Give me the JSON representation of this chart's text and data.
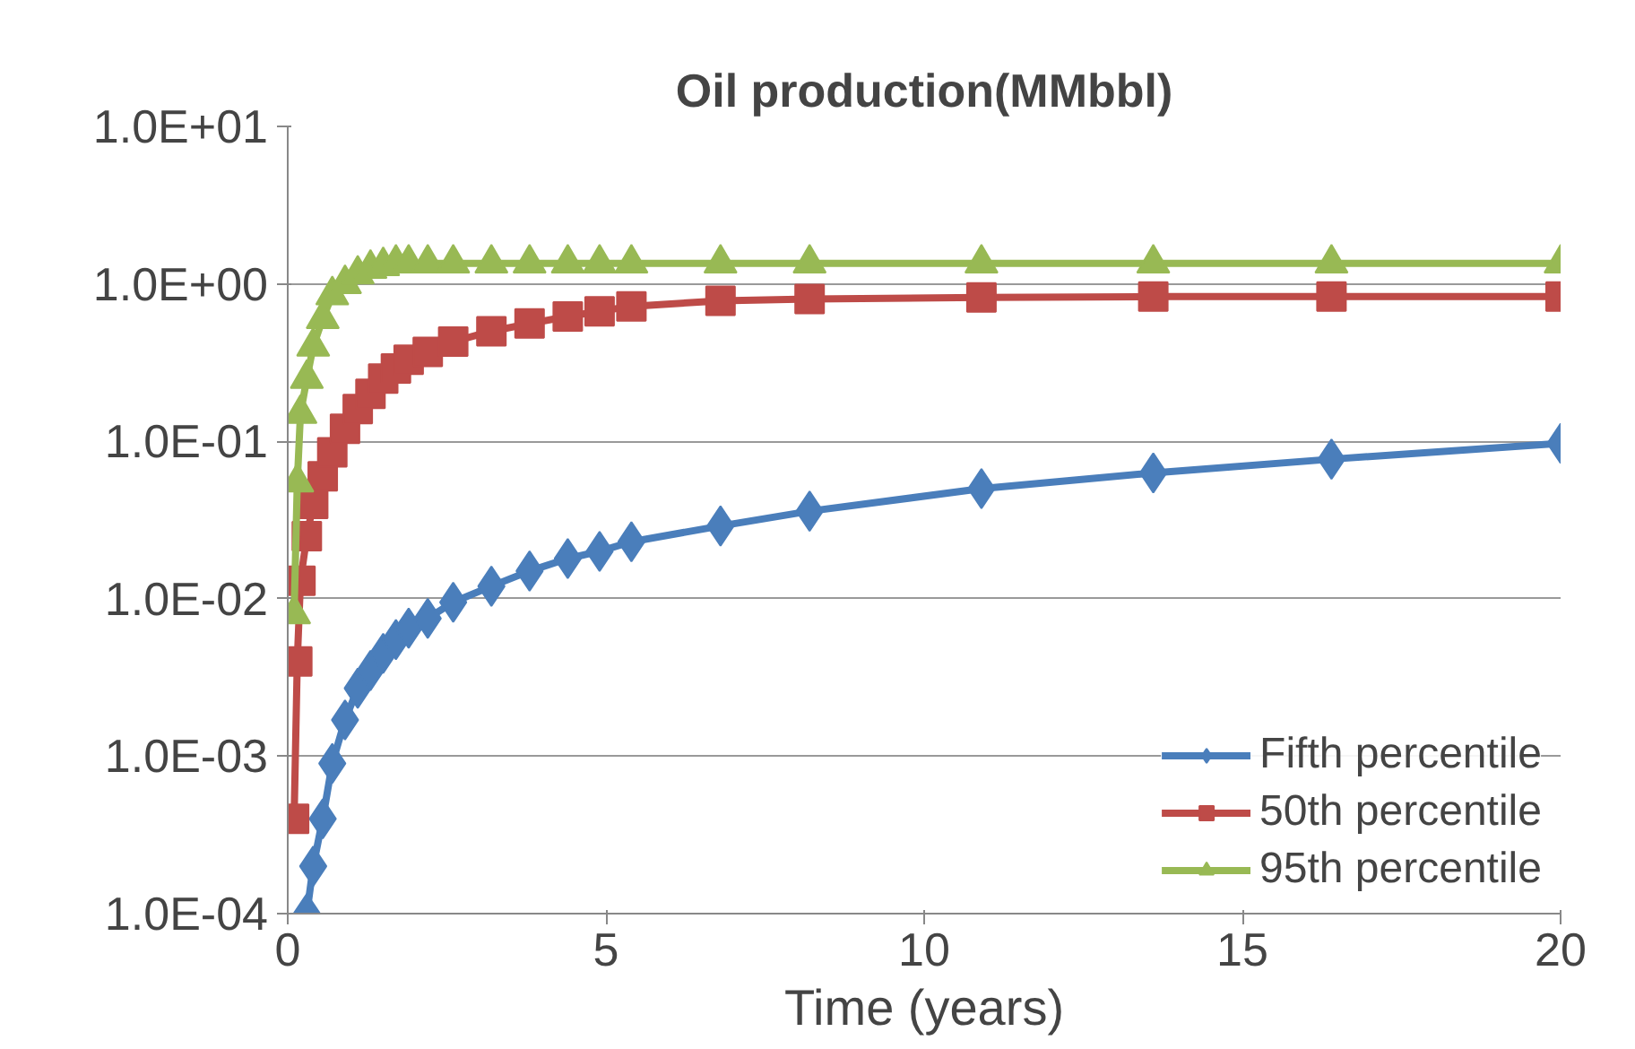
{
  "chart_data": {
    "type": "line",
    "title": "Oil production(MMbbl)",
    "xlabel": "Time (years)",
    "log": "y",
    "grid": "y",
    "legend": "bottom right",
    "line_style": "solid",
    "xlim": [
      0,
      20
    ],
    "xticks": [
      0,
      5,
      10,
      15,
      20
    ],
    "ylim": [
      0.0001,
      10
    ],
    "yticks": [
      {
        "value": 0.0001,
        "label": "1.0E-04"
      },
      {
        "value": 0.001,
        "label": "1.0E-03"
      },
      {
        "value": 0.01,
        "label": "1.0E-02"
      },
      {
        "value": 0.1,
        "label": "1.0E-01"
      },
      {
        "value": 1,
        "label": "1.0E+00"
      },
      {
        "value": 10,
        "label": "1.0E+01"
      }
    ],
    "series": [
      {
        "name": "Fifth percentile",
        "color": "#4a7ebb",
        "marker": "diamond",
        "x": [
          0.3,
          0.4,
          0.55,
          0.7,
          0.9,
          1.1,
          1.3,
          1.5,
          1.7,
          1.9,
          2.2,
          2.6,
          3.2,
          3.8,
          4.4,
          4.9,
          5.4,
          6.8,
          8.2,
          10.9,
          13.6,
          16.4,
          20
        ],
        "values": [
          0.0001,
          0.0002,
          0.0004,
          0.0009,
          0.0017,
          0.0027,
          0.0035,
          0.0045,
          0.0055,
          0.0065,
          0.0075,
          0.0095,
          0.012,
          0.015,
          0.018,
          0.02,
          0.023,
          0.029,
          0.036,
          0.05,
          0.063,
          0.077,
          0.097
        ]
      },
      {
        "name": "50th percentile",
        "color": "#be4b48",
        "marker": "square",
        "x": [
          0.1,
          0.15,
          0.2,
          0.3,
          0.4,
          0.55,
          0.7,
          0.9,
          1.1,
          1.3,
          1.5,
          1.7,
          1.9,
          2.2,
          2.6,
          3.2,
          3.8,
          4.4,
          4.9,
          5.4,
          6.8,
          8.2,
          10.9,
          13.6,
          16.4,
          20
        ],
        "values": [
          0.0004,
          0.004,
          0.013,
          0.025,
          0.04,
          0.06,
          0.085,
          0.12,
          0.16,
          0.2,
          0.25,
          0.29,
          0.33,
          0.37,
          0.43,
          0.5,
          0.56,
          0.62,
          0.67,
          0.72,
          0.78,
          0.8,
          0.82,
          0.83,
          0.83,
          0.83
        ]
      },
      {
        "name": "95th percentile",
        "color": "#98b954",
        "marker": "triangle",
        "x": [
          0.1,
          0.15,
          0.2,
          0.3,
          0.4,
          0.55,
          0.7,
          0.9,
          1.1,
          1.3,
          1.5,
          1.7,
          1.9,
          2.2,
          2.6,
          3.2,
          3.8,
          4.4,
          4.9,
          5.4,
          6.8,
          8.2,
          10.9,
          13.6,
          16.4,
          20
        ],
        "values": [
          0.008,
          0.055,
          0.15,
          0.25,
          0.4,
          0.6,
          0.85,
          1.0,
          1.15,
          1.25,
          1.3,
          1.35,
          1.35,
          1.35,
          1.35,
          1.35,
          1.35,
          1.35,
          1.35,
          1.35,
          1.35,
          1.35,
          1.35,
          1.35,
          1.35,
          1.35
        ]
      }
    ]
  }
}
